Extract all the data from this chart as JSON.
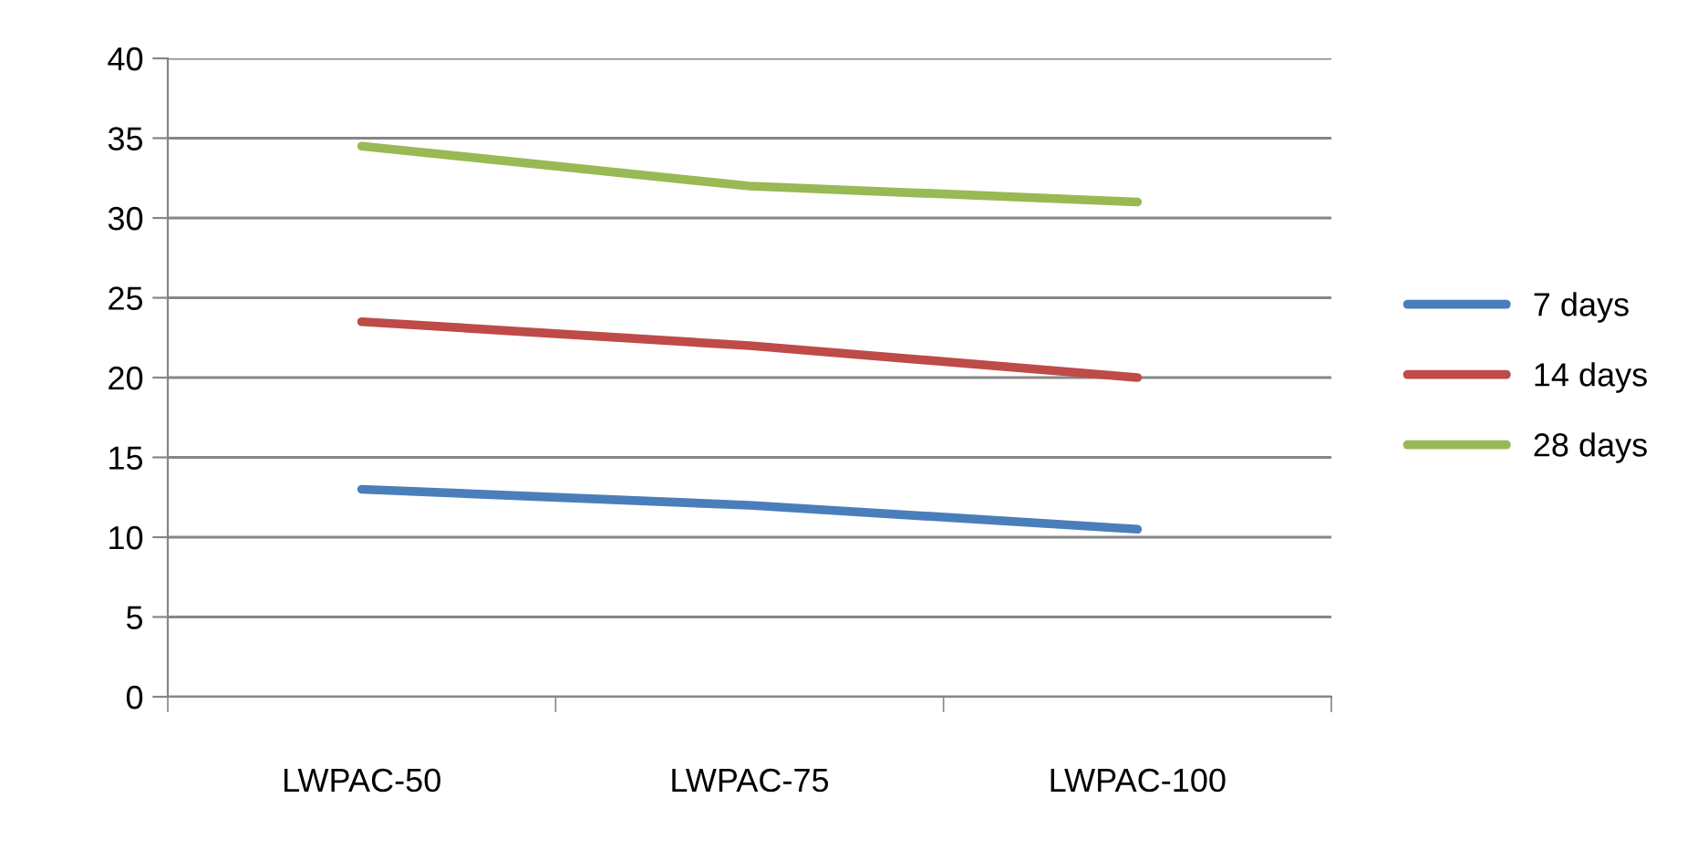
{
  "chart_data": {
    "type": "line",
    "categories": [
      "LWPAC-50",
      "LWPAC-75",
      "LWPAC-100"
    ],
    "series": [
      {
        "name": "7 days",
        "color": "#4a7ebb",
        "values": [
          13,
          12,
          10.5
        ]
      },
      {
        "name": "14 days",
        "color": "#be4b48",
        "values": [
          23.5,
          22,
          20
        ]
      },
      {
        "name": "28 days",
        "color": "#98b954",
        "values": [
          34.5,
          32,
          31
        ]
      }
    ],
    "ylim": [
      0,
      40
    ],
    "yticks": [
      0,
      5,
      10,
      15,
      20,
      25,
      30,
      35,
      40
    ],
    "grid": "y",
    "legend": "right",
    "marker": "none",
    "line_style": "solid"
  }
}
